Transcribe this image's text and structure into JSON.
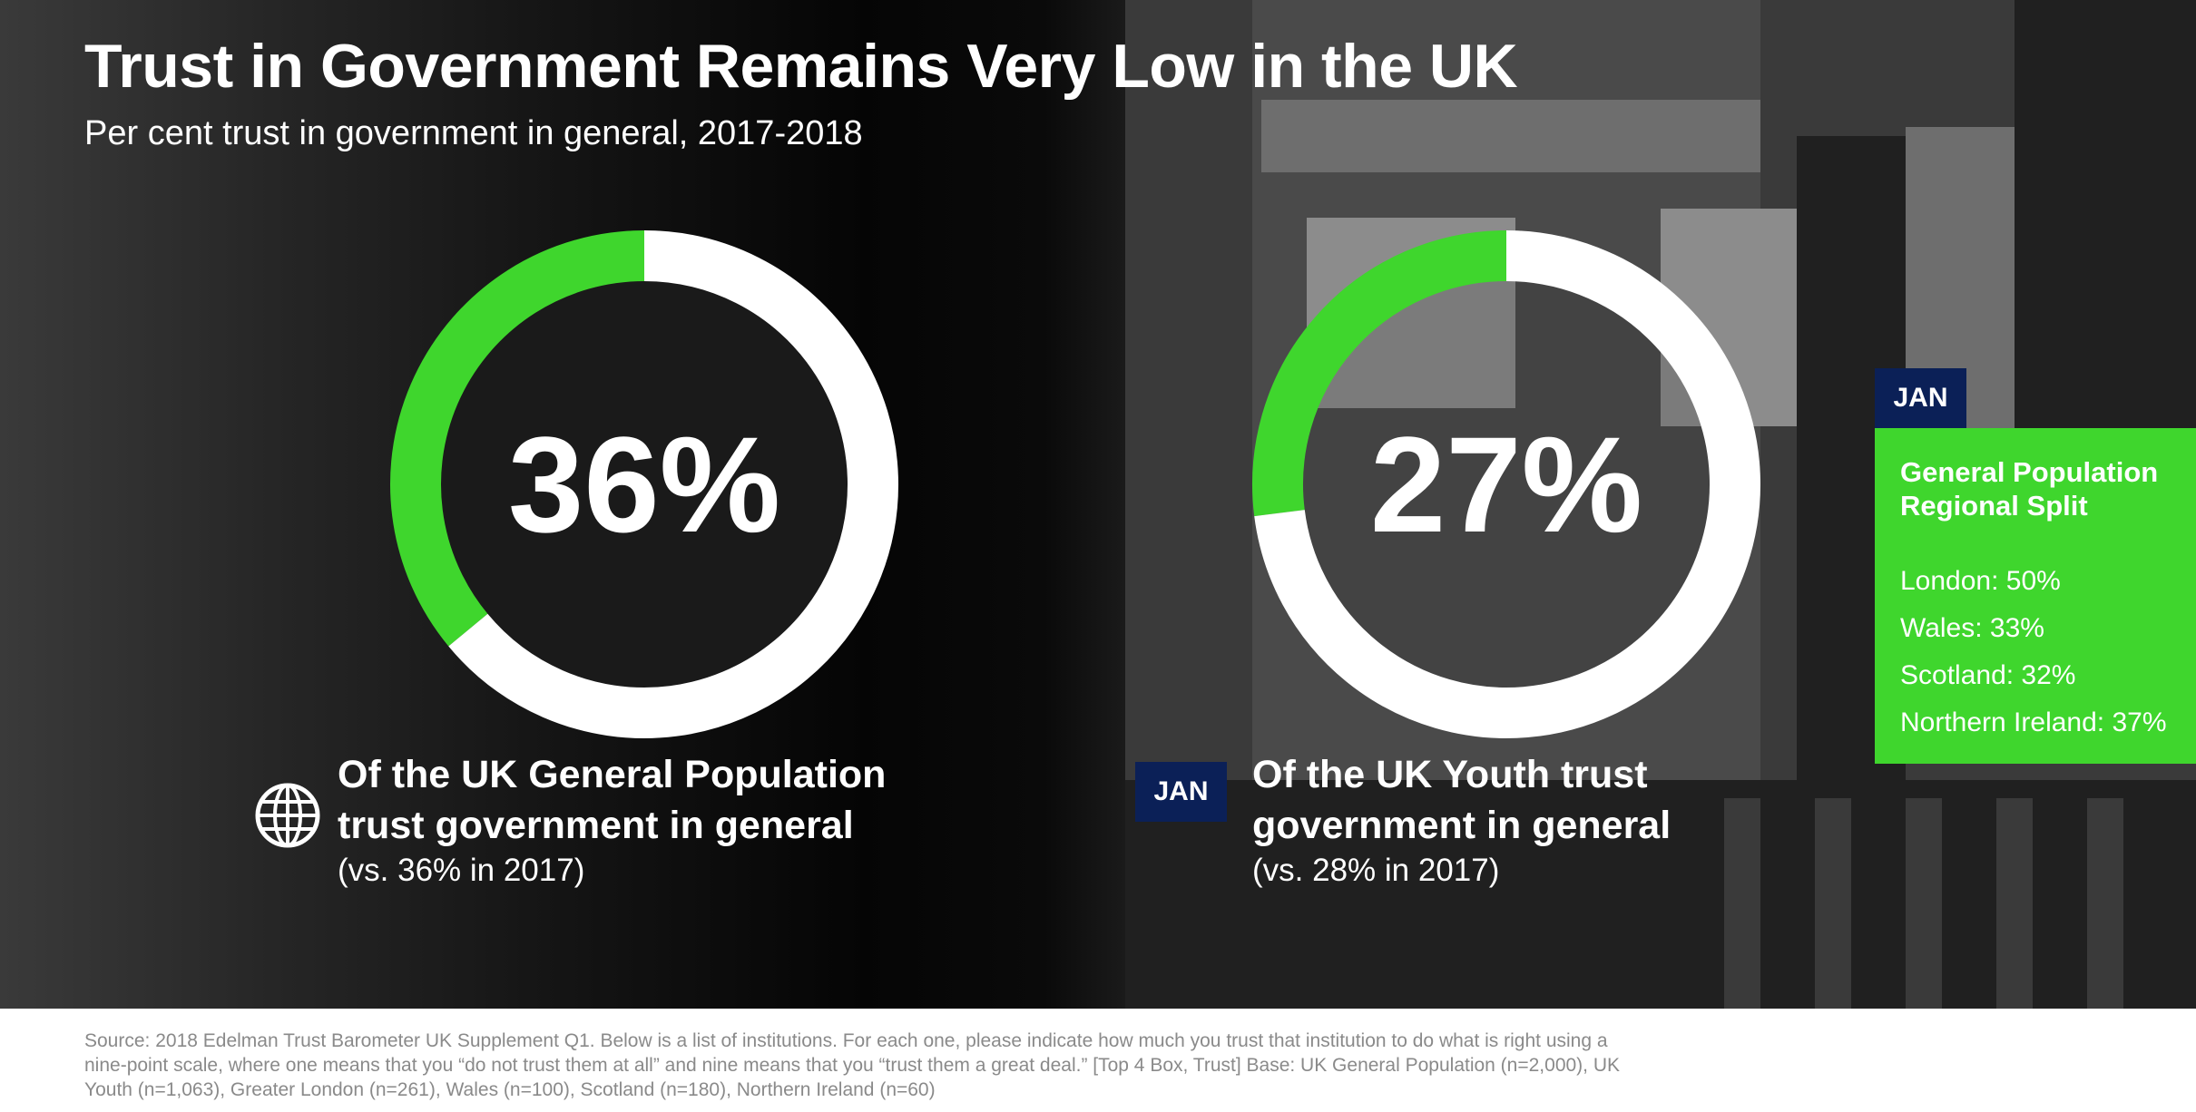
{
  "title": "Trust in Government Remains Very Low in the UK",
  "subtitle": "Per cent trust in government in general, 2017-2018",
  "chart_data": [
    {
      "type": "pie",
      "value": 36,
      "value_label": "36%",
      "caption": [
        "Of the UK General Population",
        "trust government in general"
      ],
      "comparison": "(vs. 36% in 2017)",
      "colors": {
        "filled": "#3fd62d",
        "remainder": "#ffffff"
      }
    },
    {
      "type": "pie",
      "value": 27,
      "value_label": "27%",
      "caption": [
        "Of the UK Youth trust",
        "government in general"
      ],
      "comparison": "(vs. 28% in 2017)",
      "colors": {
        "filled": "#3fd62d",
        "remainder": "#ffffff"
      }
    }
  ],
  "jan_label": "JAN",
  "regional": {
    "title": "General Population Regional Split",
    "items": [
      "London: 50%",
      "Wales: 33%",
      "Scotland: 32%",
      "Northern Ireland: 37%"
    ]
  },
  "source": "Source: 2018 Edelman Trust Barometer UK Supplement Q1. Below is a list of institutions. For each one, please indicate how much you trust that institution to do what is right using a nine-point scale, where one means that you “do not trust them at all” and nine means that you “trust them a great deal.” [Top 4 Box, Trust] Base: UK General Population (n=2,000), UK Youth (n=1,063), Greater London (n=261), Wales (n=100), Scotland (n=180), Northern Ireland (n=60)",
  "colors": {
    "accent": "#3fd62d",
    "navy": "#0b2057",
    "text": "#ffffff",
    "source_text": "#8a8a8a"
  }
}
